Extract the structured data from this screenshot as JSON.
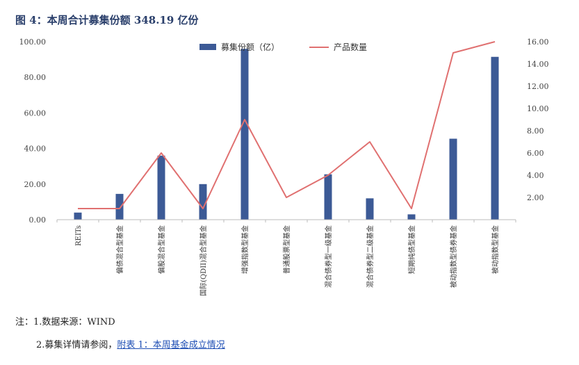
{
  "title": "图 4：本周合计募集份额 348.19 亿份",
  "notes": {
    "line1": "注：1.数据来源：WIND",
    "line2_prefix": "2.募集详情请参阅，",
    "line2_link": "附表 1：本周基金成立情况"
  },
  "chart_data": {
    "type": "bar",
    "categories": [
      "REITs",
      "偏债混合型基金",
      "偏股混合型基金",
      "国际(QDII)混合型基金",
      "增强指数型基金",
      "普通股票型基金",
      "混合债券型一级基金",
      "混合债券型二级基金",
      "短期纯债型基金",
      "被动指数型债券基金",
      "被动指数型基金"
    ],
    "series": [
      {
        "name": "募集份额（亿）",
        "type": "bar",
        "axis": "left",
        "color": "#3c5a96",
        "values": [
          4.0,
          14.5,
          36.0,
          20.0,
          96.0,
          0.0,
          25.5,
          12.0,
          3.0,
          45.5,
          91.5
        ]
      },
      {
        "name": "产品数量",
        "type": "line",
        "axis": "right",
        "color": "#e07070",
        "values": [
          1,
          1,
          6,
          1,
          9,
          2,
          4,
          7,
          1,
          15,
          16
        ]
      }
    ],
    "y_left": {
      "min": 0,
      "max": 100,
      "ticks": [
        0,
        20,
        40,
        60,
        80,
        100
      ],
      "tick_labels": [
        "0.00",
        "20.00",
        "40.00",
        "60.00",
        "80.00",
        "100.00"
      ]
    },
    "y_right": {
      "min": 0,
      "max": 16,
      "ticks": [
        2,
        4,
        6,
        8,
        10,
        12,
        14,
        16
      ],
      "tick_labels": [
        "2.00",
        "4.00",
        "6.00",
        "8.00",
        "10.00",
        "12.00",
        "14.00",
        "16.00"
      ]
    },
    "grid": false,
    "legend": "top-center"
  }
}
